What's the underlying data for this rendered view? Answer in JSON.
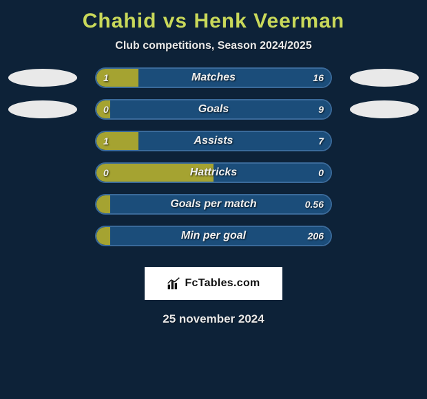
{
  "title": "Chahid vs Henk Veerman",
  "subtitle": "Club competitions, Season 2024/2025",
  "title_color": "#c9d95a",
  "background_color": "#0d2238",
  "bar_border_color": "#3a6a9a",
  "bar_left_color": "#a5a331",
  "bar_right_color": "#1b4d7a",
  "rows": [
    {
      "label": "Matches",
      "left": "1",
      "right": "16",
      "left_pct": 18,
      "show_ovals": true
    },
    {
      "label": "Goals",
      "left": "0",
      "right": "9",
      "left_pct": 6,
      "show_ovals": true
    },
    {
      "label": "Assists",
      "left": "1",
      "right": "7",
      "left_pct": 18,
      "show_ovals": false
    },
    {
      "label": "Hattricks",
      "left": "0",
      "right": "0",
      "left_pct": 50,
      "show_ovals": false
    },
    {
      "label": "Goals per match",
      "left": "",
      "right": "0.56",
      "left_pct": 6,
      "show_ovals": false
    },
    {
      "label": "Min per goal",
      "left": "",
      "right": "206",
      "left_pct": 6,
      "show_ovals": false
    }
  ],
  "brand_text": "FcTables.com",
  "date_text": "25 november 2024"
}
